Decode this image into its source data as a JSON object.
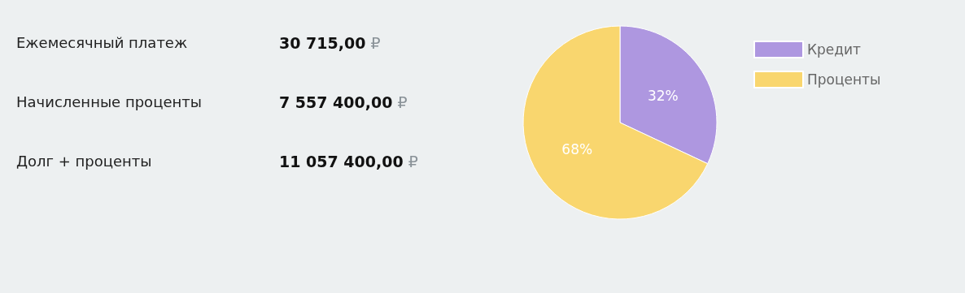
{
  "chart_data": [
    {
      "type": "other",
      "annotations": [
        "Ежемесячный платеж",
        "30 715,00 ₽",
        "Начисленные проценты",
        "7 557 400,00 ₽",
        "Долг + проценты",
        "11 057 400,00 ₽"
      ]
    },
    {
      "type": "pie",
      "categories": [
        "Кредит",
        "Проценты"
      ],
      "values": [
        32,
        68
      ],
      "colors": [
        "#ae97e0",
        "#f9d66e"
      ],
      "value_labels": [
        "32%",
        "68%"
      ],
      "legend": "top right"
    }
  ]
}
